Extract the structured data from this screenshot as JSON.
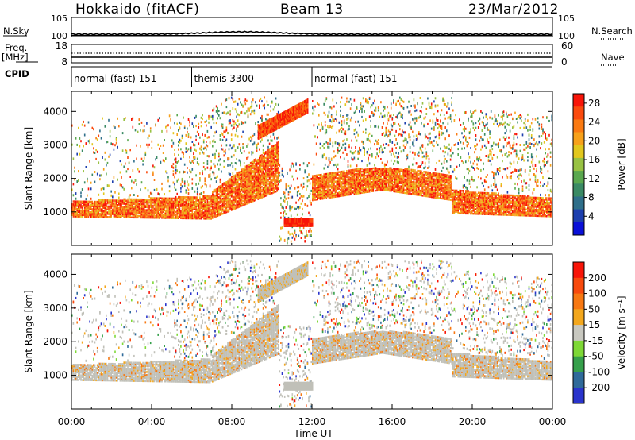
{
  "header": {
    "title": "Hokkaido (fitACF)",
    "beam": "Beam 13",
    "date": "23/Mar/2012"
  },
  "left_labels": {
    "nsky": "N.Sky",
    "freq": "Freq.",
    "freq_unit": "[MHz]",
    "cpid": "CPID"
  },
  "right_labels": {
    "nsearch": "N.Search",
    "nave": "Nave"
  },
  "cpid_segments": [
    {
      "label": "normal (fast) 151",
      "start": 0,
      "end": 6
    },
    {
      "label": "themis 3300",
      "start": 6,
      "end": 12
    },
    {
      "label": "normal (fast) 151",
      "start": 12,
      "end": 24
    }
  ],
  "chart_data": [
    {
      "type": "line",
      "name": "noise",
      "left_axis": {
        "ticks": [
          "10^5",
          "10^0"
        ]
      },
      "right_axis": {
        "ticks": [
          "10^5",
          "10^0"
        ]
      }
    },
    {
      "type": "line",
      "name": "frequency",
      "left_axis": {
        "ticks": [
          "18",
          "8"
        ],
        "ylim": [
          8,
          18
        ]
      },
      "right_axis": {
        "ticks": [
          "60",
          "0"
        ],
        "ylim": [
          0,
          60
        ]
      }
    },
    {
      "type": "heatmap",
      "name": "power",
      "xlabel": "",
      "ylabel": "Slant Range [km]",
      "xlim": [
        0,
        24
      ],
      "ylim": [
        0,
        4600
      ],
      "yticks": [
        "1000",
        "2000",
        "3000",
        "4000"
      ],
      "colorbar": {
        "label": "Power [dB]",
        "ticks": [
          "4",
          "8",
          "12",
          "16",
          "20",
          "24",
          "28"
        ],
        "range": [
          0,
          30
        ],
        "colors": [
          "#0a10d8",
          "#1d3fae",
          "#2f6f8a",
          "#3a8a64",
          "#5aa84f",
          "#98c243",
          "#e2c71d",
          "#f7a11a",
          "#fa7a12",
          "#fb4a0d",
          "#f81508"
        ]
      }
    },
    {
      "type": "heatmap",
      "name": "velocity",
      "xlabel": "Time UT",
      "ylabel": "Slant Range [km]",
      "xlim": [
        0,
        24
      ],
      "ylim": [
        0,
        4600
      ],
      "xticks": [
        "00:00",
        "04:00",
        "08:00",
        "12:00",
        "16:00",
        "20:00",
        "00:00"
      ],
      "yticks": [
        "1000",
        "2000",
        "3000",
        "4000"
      ],
      "colorbar": {
        "label": "Velocity [m s^-1]",
        "ticks": [
          "200",
          "100",
          "50",
          "15",
          "-15",
          "-50",
          "-100",
          "-200"
        ],
        "range": [
          -250,
          250
        ],
        "colors": [
          "#2a34cc",
          "#2f6a9a",
          "#36a04b",
          "#7ed836",
          "#c8c8c0",
          "#f3a71d",
          "#f77812",
          "#f84a0d",
          "#f81508"
        ]
      }
    }
  ],
  "colors": {
    "ground_scatter": "#c0c0b8",
    "background": "#ffffff"
  }
}
